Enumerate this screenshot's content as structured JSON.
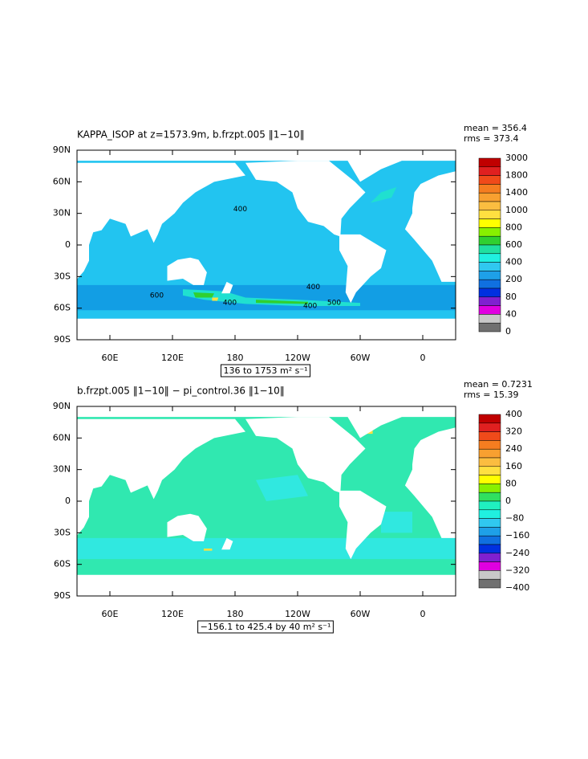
{
  "panels": [
    {
      "title": "KAPPA_ISOP at z=1573.9m, b.frzpt.005 ‖1−10‖",
      "stats": [
        "mean = 356.4",
        "rms = 373.4"
      ],
      "range_label": "136 to 1753 m² s⁻¹",
      "lat_labels": [
        "90N",
        "60N",
        "30N",
        "0",
        "30S",
        "60S",
        "90S"
      ],
      "lon_labels": [
        "60E",
        "120E",
        "180",
        "120W",
        "60W",
        "0"
      ],
      "contour_labels": [
        "400",
        "400",
        "600",
        "400",
        "500",
        "400"
      ],
      "colorbar": {
        "labels": [
          "3000",
          "1800",
          "1400",
          "1000",
          "800",
          "600",
          "400",
          "200",
          "80",
          "40",
          "0"
        ],
        "colors": [
          "#c00000",
          "#e02020",
          "#f04a1a",
          "#f57d20",
          "#f8a030",
          "#fbbd40",
          "#ffe040",
          "#ffff00",
          "#88f000",
          "#30d030",
          "#20e0a0",
          "#20f0e0",
          "#30c8f0",
          "#1ea0e8",
          "#1070e0",
          "#0030e0",
          "#8020d0",
          "#e000e0",
          "#c8c8c8",
          "#707070"
        ]
      }
    },
    {
      "title": "b.frzpt.005 ‖1−10‖ − pi_control.36 ‖1−10‖",
      "stats": [
        "mean = 0.7231",
        "rms = 15.39"
      ],
      "range_label": "−156.1 to 425.4 by 40 m² s⁻¹",
      "lat_labels": [
        "90N",
        "60N",
        "30N",
        "0",
        "30S",
        "60S",
        "90S"
      ],
      "lon_labels": [
        "60E",
        "120E",
        "180",
        "120W",
        "60W",
        "0"
      ],
      "contour_labels": [],
      "colorbar": {
        "labels": [
          "400",
          "320",
          "240",
          "160",
          "80",
          "0",
          "−80",
          "−160",
          "−240",
          "−320",
          "−400"
        ],
        "colors": [
          "#c00000",
          "#e02020",
          "#f04a1a",
          "#f57d20",
          "#f8a030",
          "#fbbd40",
          "#ffe040",
          "#ffff00",
          "#88f000",
          "#30e060",
          "#20f0c0",
          "#20f0e0",
          "#30c8f0",
          "#1ea0e8",
          "#1070e0",
          "#0030e0",
          "#8020d0",
          "#e000e0",
          "#c8c8c8",
          "#707070"
        ]
      }
    }
  ]
}
